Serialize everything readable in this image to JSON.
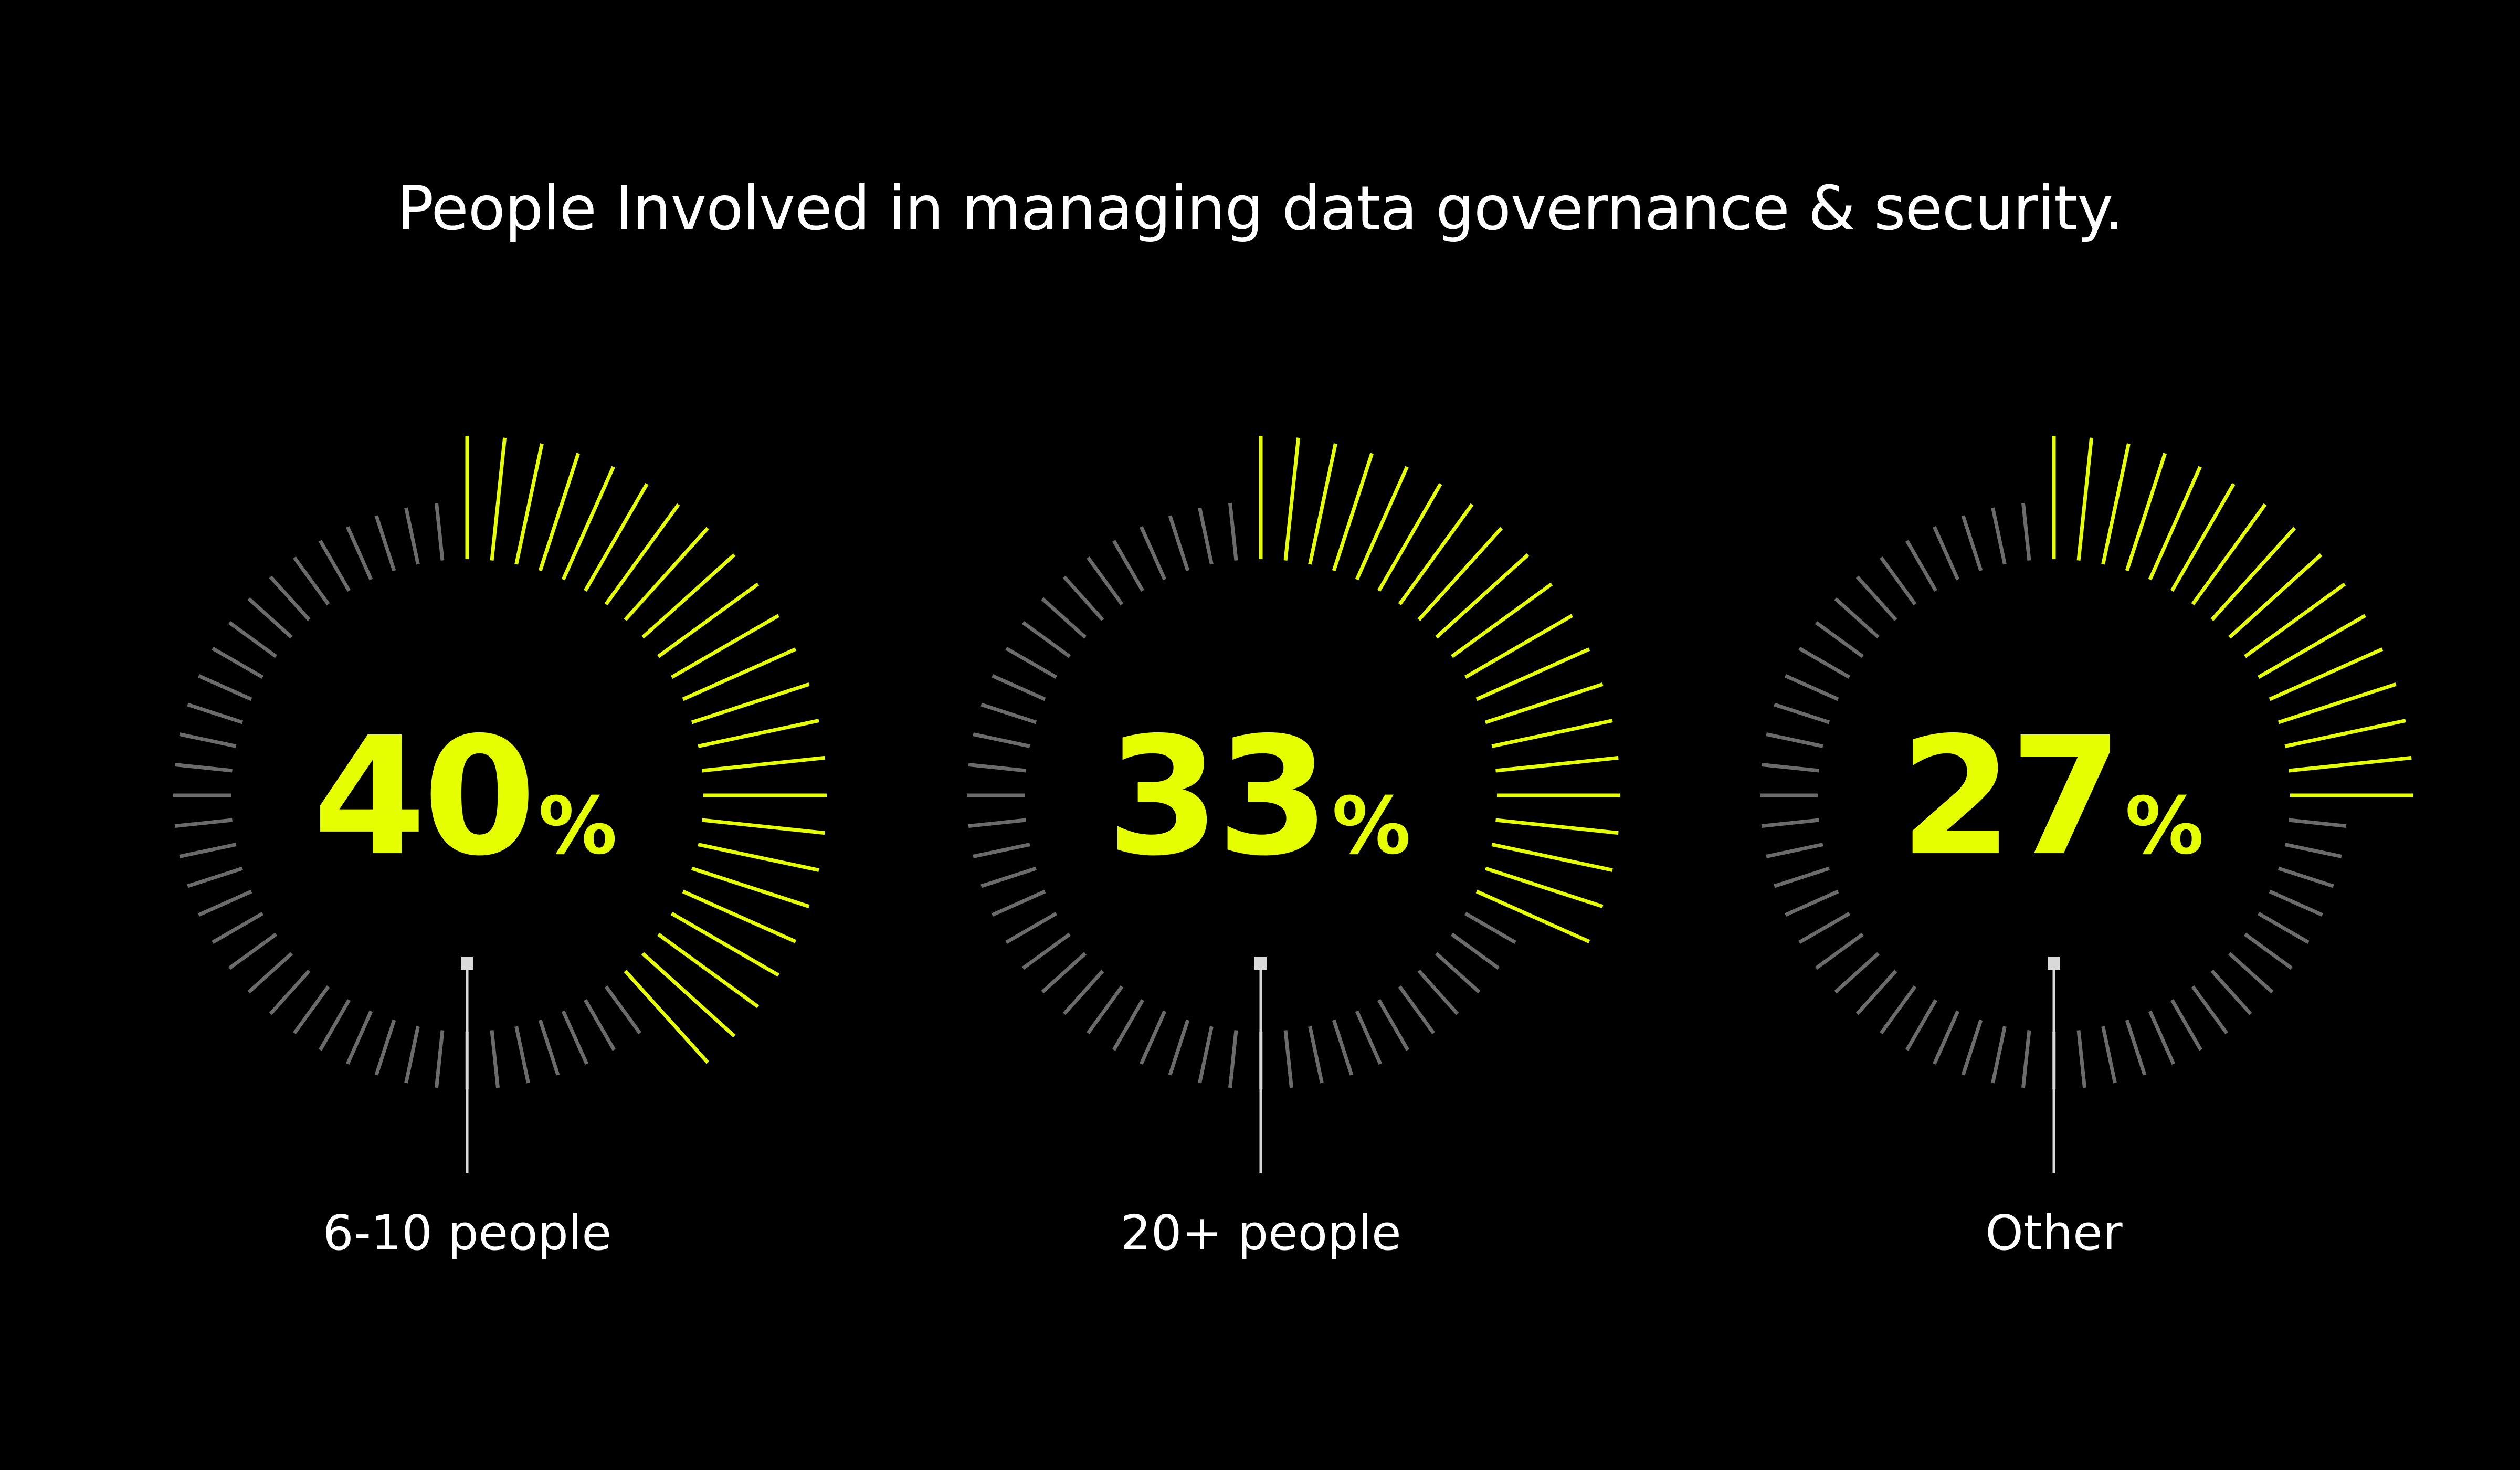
{
  "title": "People Involved in managing data governance & security.",
  "chart_data": {
    "type": "radial-gauge",
    "title": "People Involved in managing data governance & security.",
    "unit": "%",
    "items": [
      {
        "label": "6-10 people",
        "value": 40
      },
      {
        "label": "20+ people",
        "value": 33
      },
      {
        "label": "Other",
        "value": 27
      }
    ],
    "max": 100,
    "colors": {
      "highlight": "#e6ff00",
      "inactive": "#6b6b6b",
      "label": "#ffffff",
      "marker": "#d9d9d9",
      "background": "#000000"
    }
  }
}
